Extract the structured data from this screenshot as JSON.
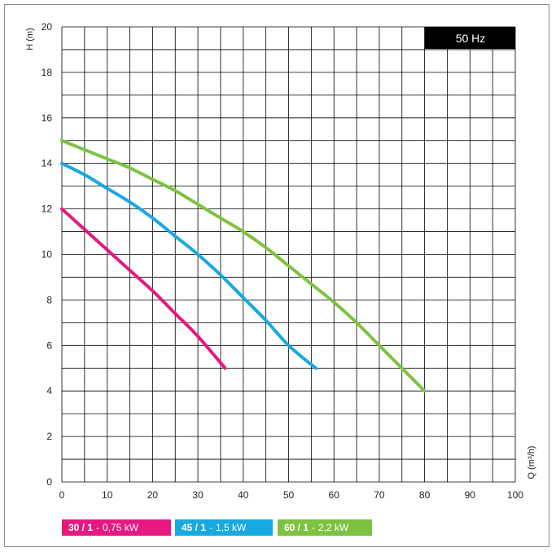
{
  "chart_data": {
    "type": "line",
    "badge": "50 Hz",
    "xlabel": "Q (m³/h)",
    "ylabel": "H (m)",
    "xlim": [
      0,
      100
    ],
    "ylim": [
      0,
      20
    ],
    "x_ticks": [
      0,
      10,
      20,
      30,
      40,
      50,
      60,
      70,
      80,
      90,
      100
    ],
    "y_ticks": [
      0,
      2,
      4,
      6,
      8,
      10,
      12,
      14,
      16,
      18,
      20
    ],
    "grid": true,
    "series": [
      {
        "name": "30 / 1",
        "power": "0,75 kW",
        "color": "#e5197f",
        "x": [
          0,
          5,
          10,
          15,
          20,
          25,
          30,
          36
        ],
        "y": [
          12,
          11.1,
          10.2,
          9.3,
          8.4,
          7.4,
          6.4,
          5.0
        ]
      },
      {
        "name": "45 / 1",
        "power": "1,5 kW",
        "color": "#17a9e1",
        "x": [
          0,
          5,
          10,
          15,
          20,
          25,
          30,
          35,
          40,
          45,
          50,
          56
        ],
        "y": [
          14,
          13.5,
          12.9,
          12.3,
          11.6,
          10.8,
          10.0,
          9.1,
          8.1,
          7.1,
          6.0,
          5.0
        ]
      },
      {
        "name": "60 / 1",
        "power": "2,2 kW",
        "color": "#7dc242",
        "x": [
          0,
          5,
          10,
          15,
          20,
          25,
          30,
          35,
          40,
          45,
          50,
          55,
          60,
          65,
          70,
          75,
          80
        ],
        "y": [
          15,
          14.6,
          14.2,
          13.8,
          13.3,
          12.8,
          12.2,
          11.6,
          11.0,
          10.3,
          9.5,
          8.7,
          7.9,
          7.0,
          6.0,
          5.0,
          4.0
        ]
      }
    ]
  }
}
